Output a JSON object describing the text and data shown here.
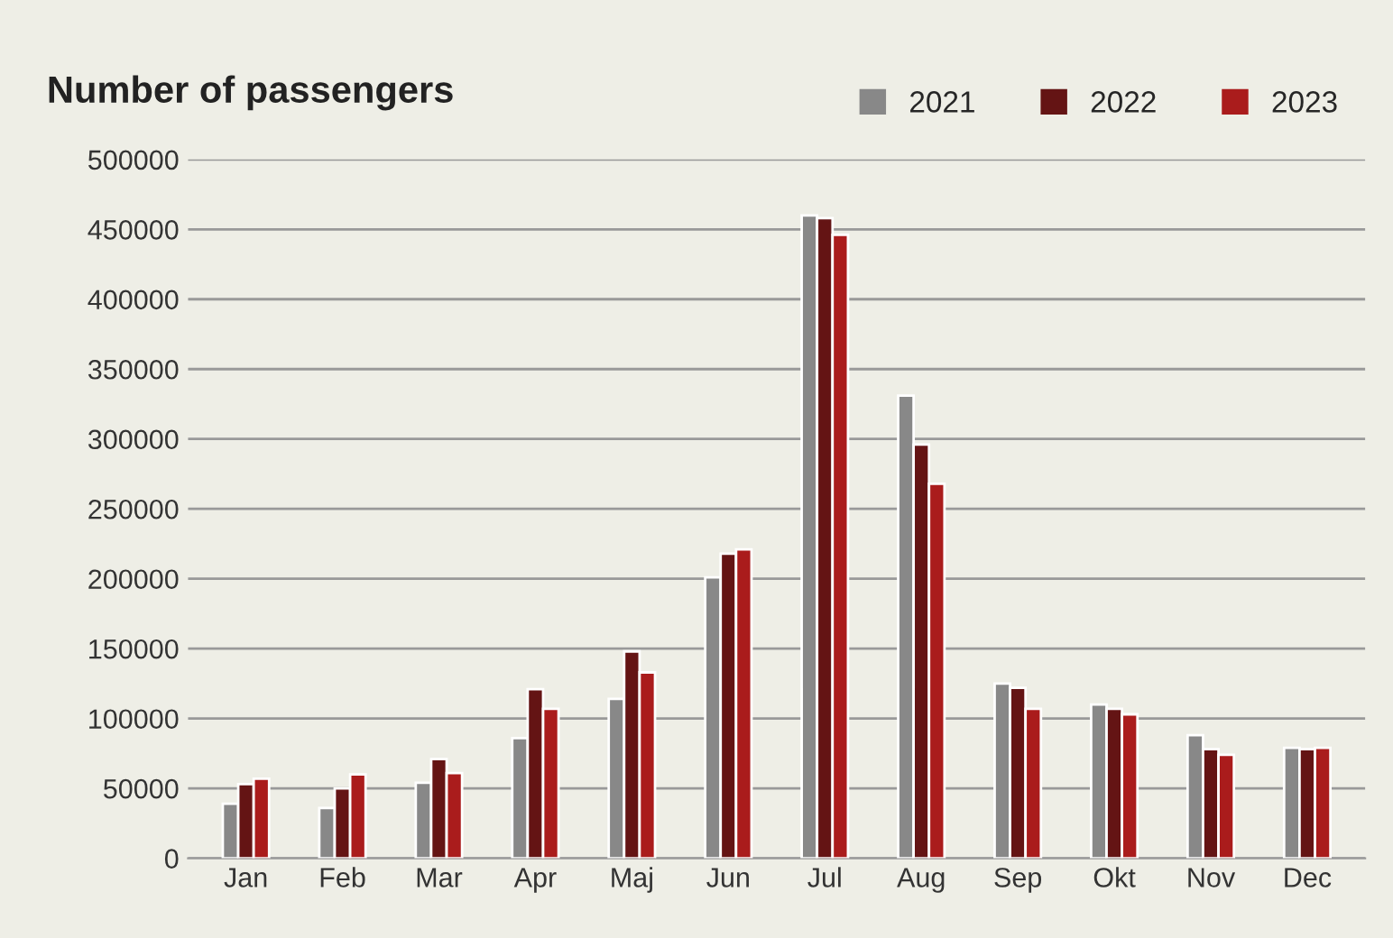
{
  "chart_data": {
    "type": "bar",
    "title": "Number of passengers",
    "categories": [
      "Jan",
      "Feb",
      "Mar",
      "Apr",
      "Maj",
      "Jun",
      "Jul",
      "Aug",
      "Sep",
      "Okt",
      "Nov",
      "Dec"
    ],
    "series": [
      {
        "name": "2021",
        "color": "#888888",
        "values": [
          39000,
          36000,
          54000,
          86000,
          114000,
          201000,
          460000,
          331000,
          125000,
          110000,
          88000,
          79000
        ]
      },
      {
        "name": "2022",
        "color": "#641414",
        "values": [
          53000,
          50000,
          71000,
          121000,
          148000,
          218000,
          458000,
          296000,
          122000,
          107000,
          78000,
          78000
        ]
      },
      {
        "name": "2023",
        "color": "#aa1c1c",
        "values": [
          57000,
          60000,
          61000,
          107000,
          133000,
          221000,
          446000,
          268000,
          107000,
          103000,
          74000,
          79000
        ]
      }
    ],
    "ylim": [
      0,
      500000
    ],
    "yticks": [
      0,
      50000,
      100000,
      150000,
      200000,
      250000,
      300000,
      350000,
      400000,
      450000,
      500000
    ],
    "grid": "y",
    "legend": "top right"
  }
}
